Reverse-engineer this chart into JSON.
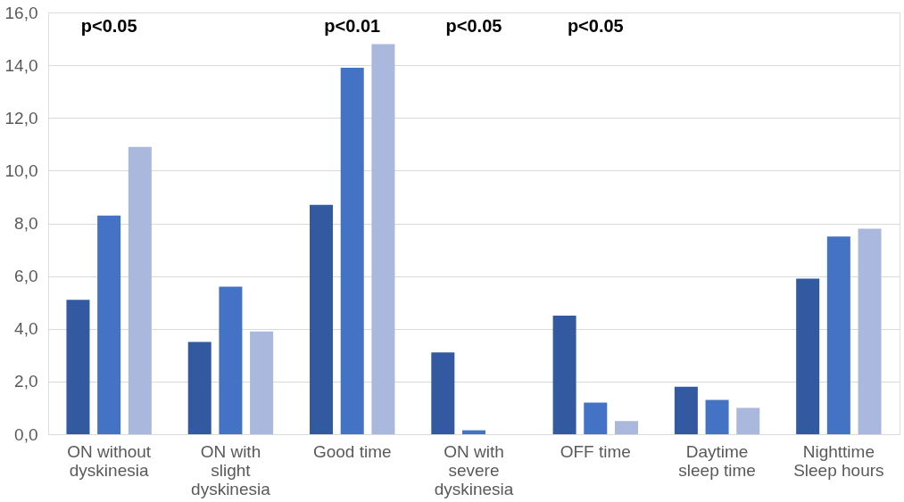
{
  "chart_data": {
    "type": "bar",
    "categories": [
      "ON without dyskinesia",
      "ON with slight dyskinesia",
      "Good time",
      "ON with severe dyskinesia",
      "OFF time",
      "Daytime sleep time",
      "Nighttime Sleep hours"
    ],
    "series": [
      {
        "color": "#335aa0",
        "values": [
          5.1,
          3.5,
          8.7,
          3.1,
          4.5,
          1.8,
          5.9
        ]
      },
      {
        "color": "#4472c4",
        "values": [
          8.3,
          5.6,
          13.9,
          0.15,
          1.2,
          1.3,
          7.5
        ]
      },
      {
        "color": "#a9b8dc",
        "values": [
          10.9,
          3.9,
          14.8,
          0,
          0.5,
          1.0,
          7.8
        ]
      }
    ],
    "ylim": [
      0,
      16
    ],
    "yticks": [
      {
        "value": 0,
        "label": "0,0"
      },
      {
        "value": 2,
        "label": "2,0"
      },
      {
        "value": 4,
        "label": "4,0"
      },
      {
        "value": 6,
        "label": "6,0"
      },
      {
        "value": 8,
        "label": "8,0"
      },
      {
        "value": 10,
        "label": "10,0"
      },
      {
        "value": 12,
        "label": "12,0"
      },
      {
        "value": 14,
        "label": "14,0"
      },
      {
        "value": 16,
        "label": "16,0"
      }
    ],
    "grid": "y",
    "legend": false,
    "annotations": [
      "p<0.05",
      "p<0.01",
      "p<0.05",
      "p<0.05"
    ]
  }
}
